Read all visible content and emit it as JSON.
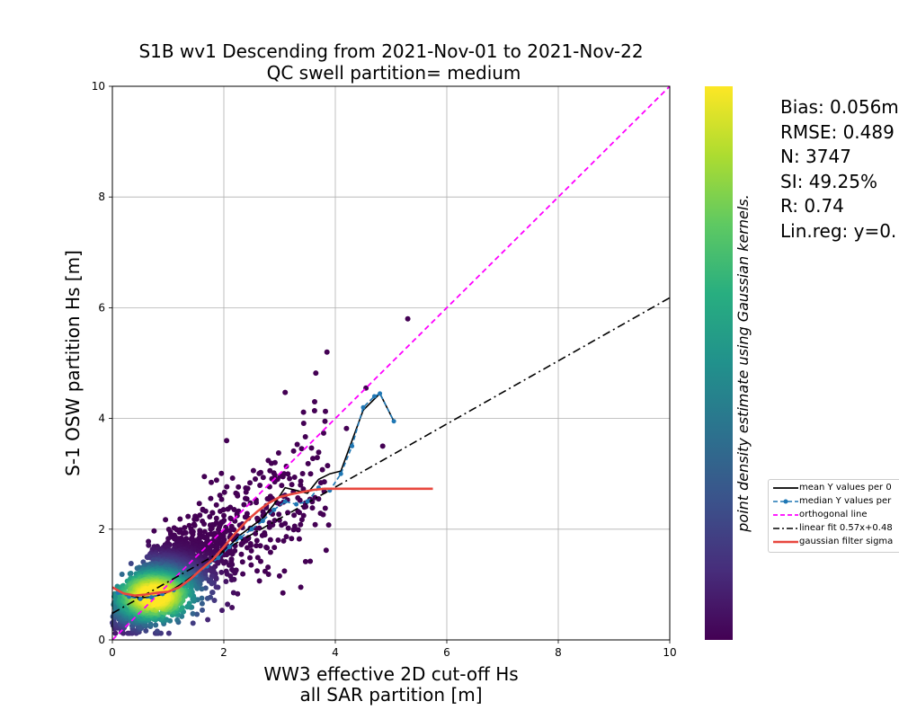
{
  "chart_data": {
    "type": "scatter",
    "title": "S1B wv1 Descending from 2021-Nov-01 to 2021-Nov-22",
    "subtitle": "QC swell partition= medium",
    "xlabel": "WW3 effective 2D cut-off Hs",
    "xlabel2": "all SAR partition [m]",
    "ylabel": "S-1 OSW partition Hs [m]",
    "xlim": [
      0,
      10
    ],
    "ylim": [
      0,
      10
    ],
    "xticks": [
      0,
      2,
      4,
      6,
      8,
      10
    ],
    "yticks": [
      0,
      2,
      4,
      6,
      8,
      10
    ],
    "grid": true,
    "colorbar_label": "point density estimate using Gaussian kernels.",
    "colormap": "viridis",
    "stats": {
      "bias": "Bias: 0.056m",
      "rmse": "RMSE: 0.489",
      "n": "N: 3747",
      "si": "SI: 49.25%",
      "r": "R: 0.74",
      "linreg": "Lin.reg: y=0."
    },
    "legend": {
      "placement": "right-outside",
      "entries": [
        {
          "label": "mean Y values per 0",
          "color": "#000000",
          "style": "solid"
        },
        {
          "label": "median Y values per",
          "color": "#1f77b4",
          "style": "dashed-dot-marker"
        },
        {
          "label": "orthogonal line",
          "color": "#ff00ff",
          "style": "dashed"
        },
        {
          "label": "linear fit 0.57x+0.48",
          "color": "#000000",
          "style": "dashdot"
        },
        {
          "label": "gaussian filter sigma",
          "color": "#e8473e",
          "style": "solid-thick"
        }
      ]
    },
    "series": [
      {
        "name": "orthogonal line",
        "x": [
          0,
          10
        ],
        "y": [
          0,
          10
        ],
        "color": "#ff00ff"
      },
      {
        "name": "linear fit 0.57x+0.48",
        "x": [
          0,
          10
        ],
        "y": [
          0.48,
          6.18
        ],
        "color": "#000000"
      },
      {
        "name": "mean Y values per 0",
        "x": [
          0.1,
          0.3,
          0.5,
          0.7,
          0.9,
          1.1,
          1.3,
          1.5,
          1.7,
          1.9,
          2.1,
          2.3,
          2.5,
          2.7,
          2.9,
          3.1,
          3.3,
          3.5,
          3.7,
          3.9,
          4.1,
          4.3,
          4.5,
          4.7,
          4.8,
          5.05
        ],
        "y": [
          0.88,
          0.8,
          0.76,
          0.78,
          0.82,
          0.92,
          1.05,
          1.2,
          1.37,
          1.5,
          1.7,
          1.9,
          2.05,
          2.2,
          2.45,
          2.75,
          2.7,
          2.65,
          2.9,
          3.0,
          3.05,
          3.6,
          4.15,
          4.35,
          4.45,
          3.95
        ],
        "color": "#000000"
      },
      {
        "name": "median Y values per",
        "x": [
          0.1,
          0.3,
          0.5,
          0.7,
          0.9,
          1.1,
          1.3,
          1.5,
          1.7,
          1.9,
          2.1,
          2.3,
          2.5,
          2.7,
          2.9,
          3.1,
          3.3,
          3.5,
          3.7,
          3.9,
          4.1,
          4.3,
          4.5,
          4.7,
          4.8,
          5.05
        ],
        "y": [
          0.85,
          0.78,
          0.74,
          0.77,
          0.83,
          0.9,
          1.02,
          1.17,
          1.33,
          1.48,
          1.68,
          1.85,
          2.0,
          2.15,
          2.35,
          2.5,
          2.45,
          2.5,
          2.75,
          2.7,
          3.0,
          3.5,
          4.2,
          4.4,
          4.45,
          3.95
        ],
        "color": "#1f77b4"
      },
      {
        "name": "gaussian filter sigma",
        "x": [
          0,
          0.2,
          0.4,
          0.6,
          0.8,
          1.0,
          1.2,
          1.4,
          1.6,
          1.8,
          2.0,
          2.2,
          2.4,
          2.6,
          2.8,
          3.0,
          3.2,
          3.4,
          3.6,
          3.8,
          4.0,
          4.5,
          5.0,
          5.75
        ],
        "y": [
          0.95,
          0.84,
          0.8,
          0.82,
          0.85,
          0.87,
          0.95,
          1.1,
          1.28,
          1.45,
          1.68,
          1.92,
          2.14,
          2.32,
          2.47,
          2.58,
          2.63,
          2.67,
          2.71,
          2.73,
          2.73,
          2.73,
          2.73,
          2.73
        ],
        "color": "#e8473e"
      }
    ],
    "scatter_cloud": {
      "n_points_drawn": 2200,
      "outliers": [
        [
          5.3,
          5.8
        ],
        [
          3.85,
          5.2
        ],
        [
          3.65,
          4.82
        ],
        [
          2.05,
          3.6
        ],
        [
          3.1,
          4.47
        ],
        [
          4.55,
          4.55
        ],
        [
          4.2,
          3.82
        ],
        [
          4.85,
          3.5
        ],
        [
          1.65,
          2.95
        ],
        [
          3.55,
          1.42
        ]
      ]
    }
  }
}
